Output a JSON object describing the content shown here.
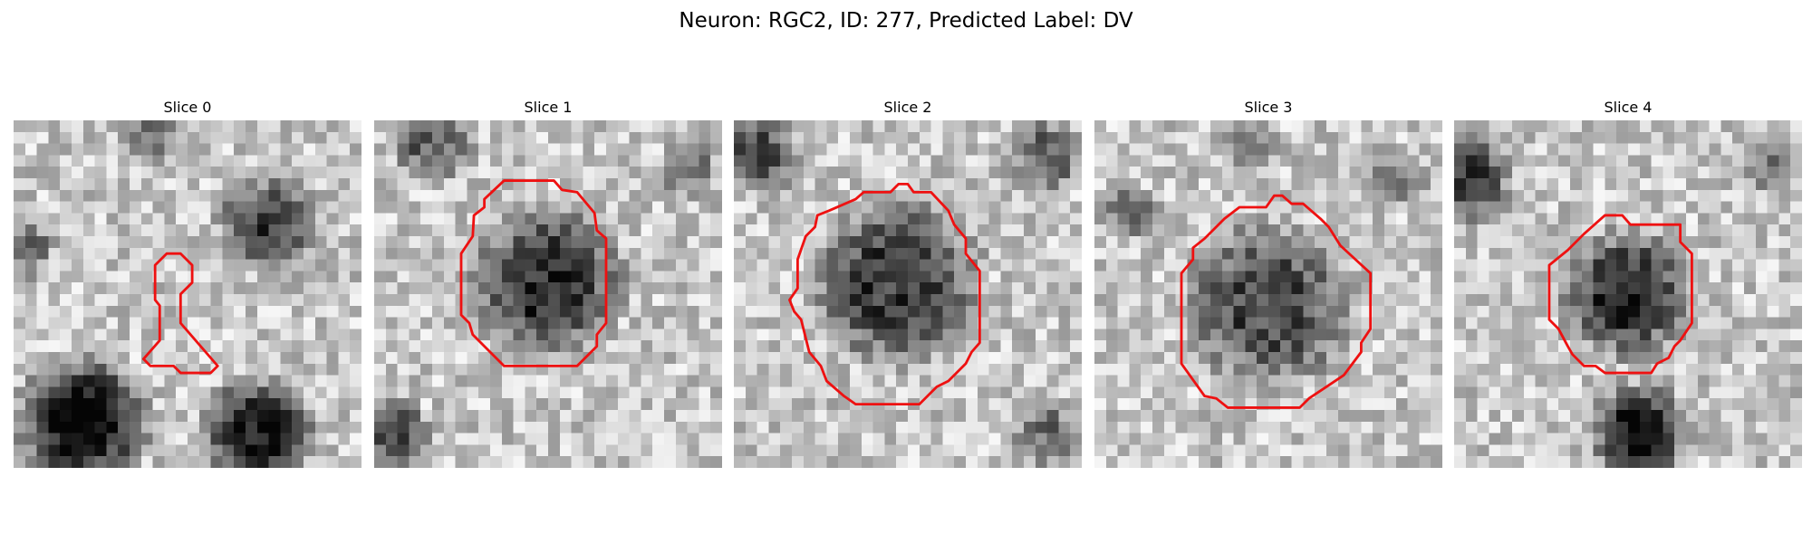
{
  "figure": {
    "title": "Neuron: RGC2, ID: 277, Predicted Label: DV"
  },
  "panels": [
    {
      "title": "Slice 0",
      "seed": 11,
      "dark_blobs": [
        {
          "cx": 22,
          "cy": 9,
          "r": 5.0,
          "depth": 0.55
        },
        {
          "cx": 6,
          "cy": 26,
          "r": 6.5,
          "depth": 0.75
        },
        {
          "cx": 21,
          "cy": 27,
          "r": 5.5,
          "depth": 0.7
        },
        {
          "cx": 12,
          "cy": 1,
          "r": 3,
          "depth": 0.35
        },
        {
          "cx": 1,
          "cy": 11,
          "r": 3,
          "depth": 0.35
        }
      ],
      "contour": [
        [
          13.2,
          11.5
        ],
        [
          14.4,
          11.5
        ],
        [
          15.4,
          12.5
        ],
        [
          15.4,
          14.0
        ],
        [
          14.4,
          15.0
        ],
        [
          14.4,
          17.5
        ],
        [
          17.6,
          21.2
        ],
        [
          17.0,
          21.8
        ],
        [
          14.4,
          21.8
        ],
        [
          13.8,
          21.2
        ],
        [
          11.8,
          21.2
        ],
        [
          11.2,
          20.6
        ],
        [
          12.6,
          19.0
        ],
        [
          12.6,
          16.0
        ],
        [
          12.2,
          15.5
        ],
        [
          12.2,
          12.5
        ]
      ]
    },
    {
      "title": "Slice 1",
      "seed": 23,
      "dark_blobs": [
        {
          "cx": 15,
          "cy": 14,
          "r": 7.5,
          "depth": 0.6
        },
        {
          "cx": 5,
          "cy": 2,
          "r": 4,
          "depth": 0.4
        },
        {
          "cx": 2,
          "cy": 27,
          "r": 3.5,
          "depth": 0.45
        },
        {
          "cx": 27,
          "cy": 4,
          "r": 3,
          "depth": 0.3
        }
      ],
      "contour": [
        [
          12.5,
          5.2
        ],
        [
          15.5,
          5.2
        ],
        [
          16.2,
          6.0
        ],
        [
          17.5,
          6.2
        ],
        [
          19.0,
          8.0
        ],
        [
          19.2,
          9.5
        ],
        [
          20.0,
          10.2
        ],
        [
          20.0,
          17.5
        ],
        [
          19.2,
          18.5
        ],
        [
          19.2,
          19.5
        ],
        [
          17.5,
          21.2
        ],
        [
          11.2,
          21.2
        ],
        [
          8.5,
          18.5
        ],
        [
          8.2,
          17.5
        ],
        [
          7.5,
          16.8
        ],
        [
          7.5,
          11.5
        ],
        [
          8.5,
          10.0
        ],
        [
          8.6,
          8.2
        ],
        [
          9.5,
          7.5
        ],
        [
          9.5,
          6.8
        ],
        [
          11.2,
          5.2
        ]
      ]
    },
    {
      "title": "Slice 2",
      "seed": 37,
      "dark_blobs": [
        {
          "cx": 14,
          "cy": 14,
          "r": 8.5,
          "depth": 0.55
        },
        {
          "cx": 2,
          "cy": 3,
          "r": 4,
          "depth": 0.45
        },
        {
          "cx": 27,
          "cy": 3,
          "r": 4,
          "depth": 0.4
        },
        {
          "cx": 27,
          "cy": 27,
          "r": 3.5,
          "depth": 0.35
        }
      ],
      "contour": [
        [
          14.2,
          5.5
        ],
        [
          15.0,
          5.5
        ],
        [
          15.5,
          6.2
        ],
        [
          17.0,
          6.2
        ],
        [
          18.5,
          7.8
        ],
        [
          19.0,
          9.0
        ],
        [
          20.0,
          10.2
        ],
        [
          20.0,
          11.5
        ],
        [
          21.2,
          13.0
        ],
        [
          21.2,
          19.2
        ],
        [
          20.5,
          20.0
        ],
        [
          20.0,
          21.0
        ],
        [
          18.5,
          22.5
        ],
        [
          17.5,
          23.0
        ],
        [
          17.0,
          23.5
        ],
        [
          16.0,
          24.5
        ],
        [
          10.5,
          24.5
        ],
        [
          9.5,
          23.8
        ],
        [
          8.0,
          22.5
        ],
        [
          7.5,
          21.2
        ],
        [
          6.5,
          20.0
        ],
        [
          5.8,
          17.2
        ],
        [
          5.2,
          16.5
        ],
        [
          4.8,
          15.5
        ],
        [
          5.5,
          14.5
        ],
        [
          5.5,
          12.0
        ],
        [
          6.2,
          10.0
        ],
        [
          7.0,
          9.2
        ],
        [
          7.2,
          8.2
        ],
        [
          8.2,
          7.8
        ],
        [
          10.5,
          6.8
        ],
        [
          11.2,
          6.2
        ],
        [
          13.5,
          6.2
        ]
      ]
    },
    {
      "title": "Slice 3",
      "seed": 41,
      "dark_blobs": [
        {
          "cx": 15,
          "cy": 16,
          "r": 8.5,
          "depth": 0.5
        },
        {
          "cx": 13,
          "cy": 2,
          "r": 3,
          "depth": 0.35
        },
        {
          "cx": 3,
          "cy": 8,
          "r": 3,
          "depth": 0.3
        },
        {
          "cx": 26,
          "cy": 5,
          "r": 3,
          "depth": 0.35
        }
      ],
      "contour": [
        [
          15.5,
          6.5
        ],
        [
          16.2,
          6.5
        ],
        [
          17.0,
          7.2
        ],
        [
          18.0,
          7.2
        ],
        [
          19.5,
          8.5
        ],
        [
          20.2,
          9.2
        ],
        [
          21.2,
          10.8
        ],
        [
          22.5,
          12.0
        ],
        [
          23.8,
          13.2
        ],
        [
          23.8,
          18.0
        ],
        [
          23.0,
          19.2
        ],
        [
          23.0,
          20.0
        ],
        [
          21.5,
          22.0
        ],
        [
          20.0,
          23.0
        ],
        [
          18.5,
          24.0
        ],
        [
          17.7,
          24.8
        ],
        [
          11.5,
          24.8
        ],
        [
          10.5,
          24.0
        ],
        [
          9.5,
          23.8
        ],
        [
          7.5,
          21.0
        ],
        [
          7.5,
          13.2
        ],
        [
          8.5,
          12.0
        ],
        [
          8.5,
          11.0
        ],
        [
          9.5,
          10.2
        ],
        [
          11.2,
          8.5
        ],
        [
          12.5,
          7.5
        ],
        [
          14.8,
          7.5
        ]
      ]
    },
    {
      "title": "Slice 4",
      "seed": 53,
      "dark_blobs": [
        {
          "cx": 15,
          "cy": 15,
          "r": 6.5,
          "depth": 0.6
        },
        {
          "cx": 1,
          "cy": 5,
          "r": 4.5,
          "depth": 0.55
        },
        {
          "cx": 16,
          "cy": 27,
          "r": 5,
          "depth": 0.7
        },
        {
          "cx": 27,
          "cy": 4,
          "r": 3,
          "depth": 0.3
        }
      ],
      "contour": [
        [
          13.0,
          8.2
        ],
        [
          14.5,
          8.2
        ],
        [
          15.2,
          9.0
        ],
        [
          19.5,
          9.0
        ],
        [
          19.5,
          10.5
        ],
        [
          20.5,
          11.5
        ],
        [
          20.5,
          17.5
        ],
        [
          19.5,
          19.0
        ],
        [
          19.0,
          19.5
        ],
        [
          18.5,
          20.5
        ],
        [
          17.5,
          21.0
        ],
        [
          17.0,
          21.8
        ],
        [
          13.0,
          21.8
        ],
        [
          12.2,
          21.2
        ],
        [
          11.2,
          21.2
        ],
        [
          10.2,
          20.2
        ],
        [
          9.8,
          19.5
        ],
        [
          9.0,
          18.0
        ],
        [
          8.2,
          17.2
        ],
        [
          8.2,
          12.5
        ],
        [
          9.8,
          11.2
        ],
        [
          11.2,
          9.8
        ]
      ]
    }
  ],
  "style": {
    "contour_color": "#ee1111",
    "grid_size": 30
  }
}
